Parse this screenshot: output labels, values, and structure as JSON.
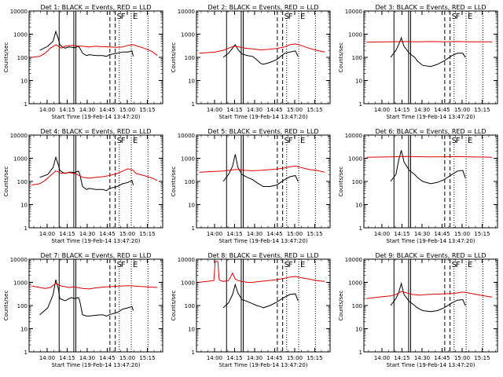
{
  "chart_data": {
    "type": "line",
    "ylabel": "Counts/sec",
    "xlabel": "Start Time (19-Feb-14 13:47:20)",
    "y_scale": "log",
    "ylim": [
      1,
      10000
    ],
    "y_ticks": [
      1,
      10,
      100,
      1000,
      10000
    ],
    "y_tick_labels": [
      "1",
      "10",
      "100",
      "1000",
      "10000"
    ],
    "x_tick_labels": [
      "14:00",
      "14:15",
      "14:30",
      "14:45",
      "15:00",
      "15:15"
    ],
    "x_tick_minutes": [
      13.5,
      28.5,
      43.5,
      58.5,
      73.5,
      88.5
    ],
    "x_range_minutes": [
      0,
      100
    ],
    "legend": "in title, top",
    "series_colors": {
      "Events": "#000000",
      "LLD": "#dd0000"
    },
    "markers": [
      "S",
      "F",
      "E"
    ],
    "panels": [
      {
        "title": "Det 1: BLACK = Events, RED = LLD",
        "series": [
          {
            "name": "Events",
            "x": [
              8,
              14,
              18,
              20,
              22,
              23,
              25,
              27,
              30,
              32,
              34,
              37,
              38,
              40,
              43,
              45,
              50,
              55,
              58,
              60,
              66,
              70,
              74,
              77,
              78
            ],
            "y": [
              200,
              300,
              500,
              1300,
              600,
              350,
              280,
              250,
              280,
              270,
              260,
              300,
              250,
              150,
              120,
              130,
              120,
              120,
              110,
              130,
              150,
              170,
              170,
              190,
              110
            ]
          },
          {
            "name": "LLD",
            "x": [
              2,
              8,
              12,
              16,
              20,
              22,
              24,
              27,
              30,
              32,
              34,
              36,
              40,
              45,
              50,
              55,
              60,
              66,
              70,
              74,
              78,
              80,
              86,
              92,
              96
            ],
            "y": [
              100,
              110,
              150,
              250,
              350,
              300,
              250,
              300,
              320,
              330,
              320,
              310,
              300,
              280,
              300,
              290,
              280,
              270,
              280,
              330,
              350,
              320,
              250,
              180,
              120
            ]
          }
        ],
        "vlines_solid": [
          22.5,
          33.5,
          35
        ],
        "vlines_dashed": [
          60.5,
          64.5
        ],
        "vlines_dotted": [
          67.5,
          76.5,
          89
        ]
      },
      {
        "title": "Det 2: BLACK = Events, RED = LLD",
        "series": [
          {
            "name": "Events",
            "x": [
              20,
              24,
              27,
              29,
              31,
              34,
              38,
              42,
              45,
              48,
              50,
              55,
              60,
              66,
              70,
              74,
              76
            ],
            "y": [
              100,
              150,
              250,
              350,
              220,
              140,
              120,
              110,
              80,
              55,
              50,
              60,
              80,
              150,
              170,
              190,
              110
            ]
          },
          {
            "name": "LLD",
            "x": [
              2,
              8,
              14,
              20,
              24,
              28,
              32,
              36,
              42,
              48,
              54,
              60,
              66,
              70,
              74,
              78,
              84,
              90,
              96
            ],
            "y": [
              150,
              160,
              170,
              200,
              250,
              300,
              280,
              250,
              230,
              210,
              220,
              240,
              280,
              350,
              380,
              330,
              250,
              200,
              170
            ]
          }
        ],
        "vlines_solid": [
          22.5,
          33.5,
          35
        ],
        "vlines_dashed": [
          60.5,
          64.5
        ],
        "vlines_dotted": [
          67.5,
          76.5,
          89
        ]
      },
      {
        "title": "Det 3: BLACK = Events, RED = LLD",
        "series": [
          {
            "name": "Events",
            "x": [
              20,
              24,
              26,
              28,
              30,
              34,
              38,
              40,
              44,
              50,
              55,
              60,
              66,
              70,
              74,
              76
            ],
            "y": [
              100,
              200,
              350,
              700,
              300,
              150,
              100,
              70,
              45,
              40,
              50,
              70,
              120,
              150,
              150,
              100
            ]
          },
          {
            "name": "LLD",
            "x": [
              2,
              10,
              20,
              30,
              40,
              50,
              60,
              70,
              80,
              90,
              96
            ],
            "y": [
              450,
              460,
              470,
              480,
              470,
              480,
              470,
              480,
              470,
              470,
              460
            ]
          }
        ],
        "vlines_solid": [
          22.5,
          33.5,
          35
        ],
        "vlines_dashed": [
          60.5,
          64.5
        ],
        "vlines_dotted": [
          67.5,
          76.5,
          89
        ]
      },
      {
        "title": "Det 4: BLACK = Events, RED = LLD",
        "series": [
          {
            "name": "Events",
            "x": [
              8,
              14,
              18,
              20,
              22,
              23,
              25,
              27,
              30,
              32,
              34,
              37,
              38,
              40,
              43,
              45,
              50,
              55,
              58,
              60,
              66,
              70,
              74,
              77,
              78
            ],
            "y": [
              150,
              200,
              400,
              1100,
              500,
              300,
              250,
              220,
              250,
              250,
              240,
              280,
              200,
              60,
              45,
              50,
              45,
              45,
              40,
              50,
              60,
              80,
              90,
              110,
              70
            ]
          },
          {
            "name": "LLD",
            "x": [
              2,
              8,
              12,
              16,
              20,
              22,
              24,
              27,
              30,
              32,
              34,
              36,
              40,
              45,
              50,
              55,
              60,
              66,
              70,
              74,
              78,
              80,
              86,
              92,
              96
            ],
            "y": [
              70,
              80,
              110,
              180,
              280,
              260,
              220,
              230,
              240,
              230,
              220,
              200,
              150,
              140,
              150,
              160,
              180,
              220,
              280,
              350,
              300,
              220,
              180,
              140,
              110
            ]
          }
        ],
        "vlines_solid": [
          22.5,
          33.5,
          35
        ],
        "vlines_dashed": [
          60.5,
          64.5
        ],
        "vlines_dotted": [
          67.5,
          76.5,
          89
        ]
      },
      {
        "title": "Det 5: BLACK = Events, RED = LLD",
        "series": [
          {
            "name": "Events",
            "x": [
              20,
              24,
              27,
              29,
              31,
              34,
              38,
              42,
              45,
              48,
              50,
              55,
              60,
              66,
              70,
              74,
              76
            ],
            "y": [
              100,
              200,
              450,
              1500,
              400,
              200,
              150,
              120,
              90,
              70,
              60,
              60,
              70,
              120,
              160,
              180,
              100
            ]
          },
          {
            "name": "LLD",
            "x": [
              2,
              8,
              14,
              20,
              24,
              28,
              32,
              36,
              42,
              48,
              54,
              60,
              66,
              70,
              74,
              78,
              84,
              90,
              96
            ],
            "y": [
              250,
              260,
              270,
              280,
              300,
              320,
              330,
              300,
              290,
              300,
              320,
              340,
              380,
              430,
              460,
              400,
              330,
              300,
              250
            ]
          }
        ],
        "vlines_solid": [
          22.5,
          33.5,
          35
        ],
        "vlines_dashed": [
          60.5,
          64.5
        ],
        "vlines_dotted": [
          67.5,
          76.5,
          89
        ]
      },
      {
        "title": "Det 6: BLACK = Events, RED = LLD",
        "series": [
          {
            "name": "Events",
            "x": [
              20,
              24,
              26,
              28,
              30,
              34,
              38,
              40,
              44,
              50,
              55,
              60,
              66,
              70,
              74,
              76
            ],
            "y": [
              100,
              200,
              800,
              2200,
              700,
              300,
              200,
              150,
              100,
              80,
              90,
              120,
              200,
              280,
              300,
              140
            ]
          },
          {
            "name": "LLD",
            "x": [
              2,
              10,
              20,
              30,
              40,
              50,
              60,
              70,
              80,
              90,
              96
            ],
            "y": [
              1100,
              1120,
              1150,
              1200,
              1170,
              1150,
              1160,
              1180,
              1150,
              1120,
              1100
            ]
          }
        ],
        "vlines_solid": [
          22.5,
          33.5,
          35
        ],
        "vlines_dashed": [
          60.5,
          64.5
        ],
        "vlines_dotted": [
          67.5,
          76.5,
          89
        ]
      },
      {
        "title": "Det 7: BLACK = Events, RED = LLD",
        "series": [
          {
            "name": "Events",
            "x": [
              8,
              14,
              18,
              20,
              22,
              23,
              25,
              27,
              30,
              32,
              34,
              37,
              38,
              40,
              43,
              45,
              50,
              55,
              58,
              60,
              66,
              70,
              74,
              77,
              78
            ],
            "y": [
              40,
              80,
              300,
              1300,
              500,
              200,
              180,
              160,
              200,
              220,
              200,
              220,
              150,
              40,
              35,
              35,
              38,
              40,
              35,
              40,
              50,
              70,
              80,
              90,
              60
            ]
          },
          {
            "name": "LLD",
            "x": [
              2,
              8,
              12,
              16,
              20,
              22,
              24,
              27,
              30,
              32,
              34,
              36,
              40,
              45,
              50,
              55,
              60,
              66,
              70,
              74,
              78,
              80,
              86,
              92,
              96
            ],
            "y": [
              700,
              600,
              550,
              600,
              900,
              800,
              700,
              650,
              600,
              620,
              650,
              600,
              550,
              520,
              580,
              620,
              650,
              680,
              700,
              720,
              700,
              680,
              650,
              620,
              600
            ]
          }
        ],
        "vlines_solid": [
          22.5,
          33.5,
          35
        ],
        "vlines_dashed": [
          60.5,
          64.5
        ],
        "vlines_dotted": [
          67.5,
          76.5,
          89
        ]
      },
      {
        "title": "Det 8: BLACK = Events, RED = LLD",
        "series": [
          {
            "name": "Events",
            "x": [
              20,
              24,
              27,
              29,
              31,
              34,
              38,
              42,
              45,
              48,
              50,
              55,
              60,
              66,
              70,
              74,
              76
            ],
            "y": [
              80,
              130,
              300,
              800,
              350,
              180,
              150,
              120,
              100,
              90,
              80,
              100,
              140,
              230,
              300,
              320,
              160
            ]
          },
          {
            "name": "LLD",
            "x": [
              2,
              8,
              13,
              14,
              16,
              17,
              18,
              20,
              24,
              27,
              29,
              31,
              34,
              38,
              42,
              48,
              54,
              60,
              66,
              70,
              74,
              78,
              84,
              90,
              96
            ],
            "y": [
              1000,
              1100,
              1200,
              8000,
              8000,
              1300,
              1200,
              1100,
              1200,
              2500,
              1400,
              1200,
              1100,
              1000,
              1000,
              1100,
              1200,
              1300,
              1500,
              1700,
              1800,
              1600,
              1400,
              1200,
              1100
            ]
          }
        ],
        "vlines_solid": [
          22.5,
          33.5,
          35
        ],
        "vlines_dashed": [
          60.5,
          64.5
        ],
        "vlines_dotted": [
          67.5,
          76.5,
          89
        ]
      },
      {
        "title": "Det 9: BLACK = Events, RED = LLD",
        "series": [
          {
            "name": "Events",
            "x": [
              20,
              24,
              26,
              28,
              30,
              34,
              38,
              40,
              44,
              50,
              55,
              60,
              66,
              70,
              74,
              76
            ],
            "y": [
              100,
              200,
              350,
              900,
              300,
              150,
              100,
              80,
              60,
              55,
              60,
              80,
              130,
              170,
              180,
              100
            ]
          },
          {
            "name": "LLD",
            "x": [
              2,
              8,
              14,
              20,
              24,
              28,
              32,
              36,
              42,
              48,
              54,
              60,
              66,
              70,
              74,
              78,
              84,
              90,
              96
            ],
            "y": [
              200,
              220,
              240,
              260,
              300,
              400,
              350,
              300,
              280,
              300,
              310,
              320,
              330,
              350,
              380,
              350,
              300,
              260,
              230
            ]
          }
        ],
        "vlines_solid": [
          22.5,
          33.5,
          35
        ],
        "vlines_dashed": [
          60.5,
          64.5
        ],
        "vlines_dotted": [
          67.5,
          76.5,
          89
        ]
      }
    ]
  }
}
